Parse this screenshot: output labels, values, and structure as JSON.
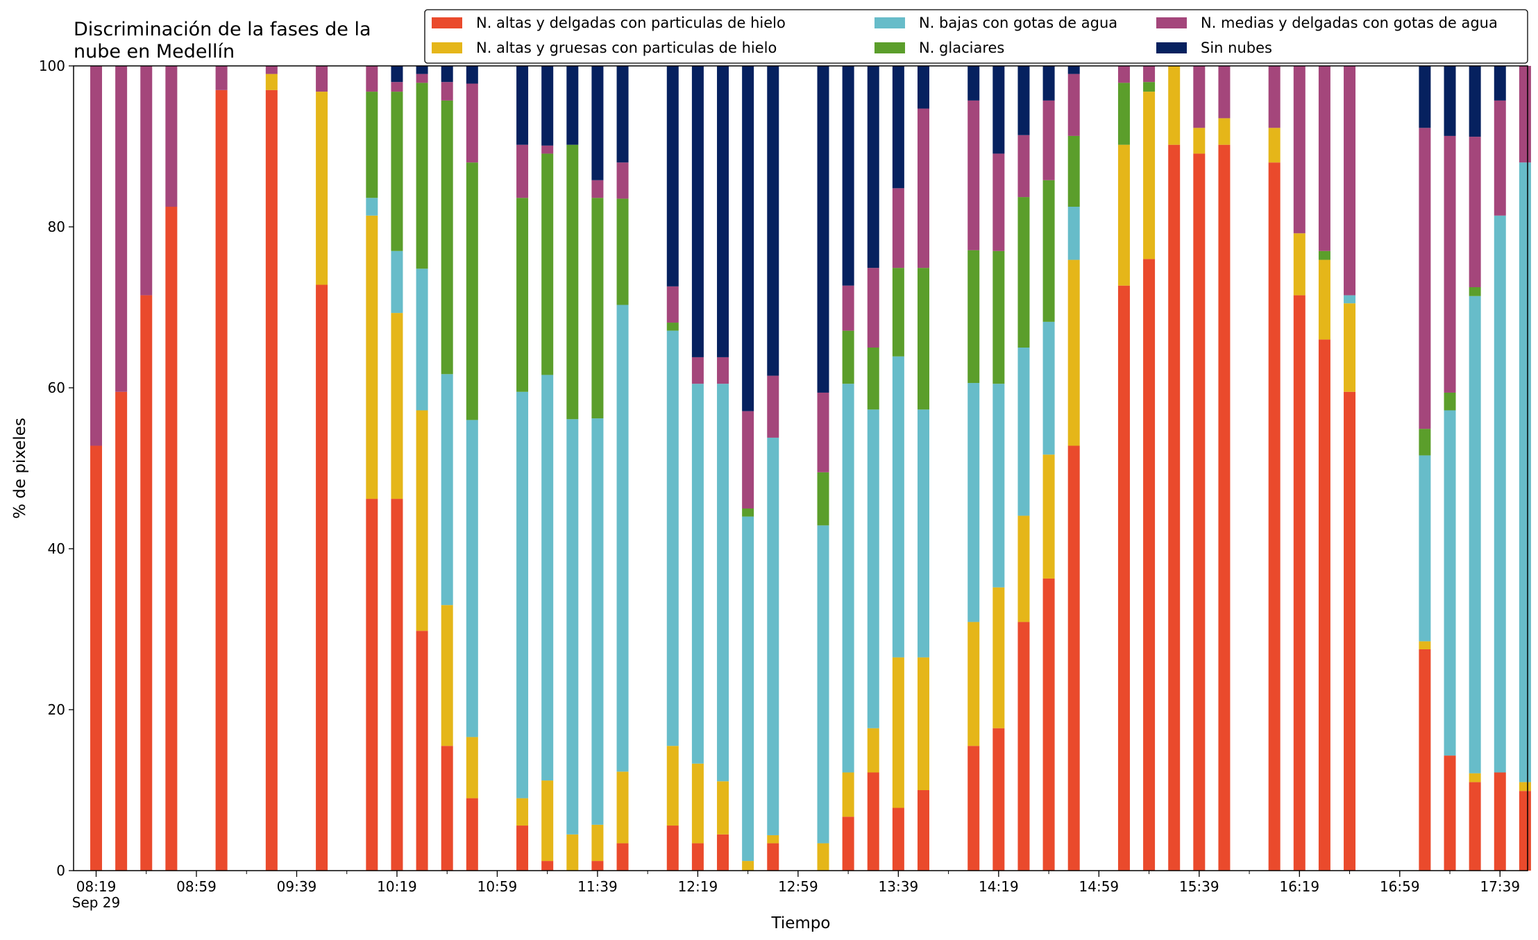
{
  "chart_data": {
    "type": "bar",
    "stacked": true,
    "title_lines": [
      "Discriminación de la fases de la",
      "nube en Medellín"
    ],
    "xlabel": "Tiempo",
    "ylabel": "% de pixeles",
    "ylim": [
      0,
      100
    ],
    "y_ticks": [
      "0",
      "20",
      "40",
      "60",
      "80",
      "100"
    ],
    "x_unit_minutes": 10,
    "x_range_minutes": [
      490,
      1070
    ],
    "x_tick_labels": [
      {
        "t": 499,
        "label": "08:19",
        "sub": "Sep 29"
      },
      {
        "t": 539,
        "label": "08:59"
      },
      {
        "t": 579,
        "label": "09:39"
      },
      {
        "t": 619,
        "label": "10:19"
      },
      {
        "t": 659,
        "label": "10:59"
      },
      {
        "t": 699,
        "label": "11:39"
      },
      {
        "t": 739,
        "label": "12:19"
      },
      {
        "t": 779,
        "label": "12:59"
      },
      {
        "t": 819,
        "label": "13:39"
      },
      {
        "t": 859,
        "label": "14:19"
      },
      {
        "t": 899,
        "label": "14:59"
      },
      {
        "t": 939,
        "label": "15:39"
      },
      {
        "t": 979,
        "label": "16:19"
      },
      {
        "t": 1019,
        "label": "16:59"
      },
      {
        "t": 1059,
        "label": "17:39"
      }
    ],
    "legend_position": "top",
    "legend": [
      {
        "key": "n_altas_delgadas",
        "label": "N. altas y delgadas con particulas de hielo",
        "color": "#ea4a2c"
      },
      {
        "key": "n_altas_gruesas",
        "label": "N. altas y gruesas con particulas de hielo",
        "color": "#e5b619"
      },
      {
        "key": "n_bajas",
        "label": "N. bajas con gotas de agua",
        "color": "#67bcc9"
      },
      {
        "key": "n_glaciares",
        "label": "N. glaciares",
        "color": "#5b9e2b"
      },
      {
        "key": "n_medias",
        "label": "N. medias y delgadas con gotas de agua",
        "color": "#a4467b"
      },
      {
        "key": "sin_nubes",
        "label": "Sin nubes",
        "color": "#06215f"
      }
    ],
    "series_order": [
      "n_altas_delgadas",
      "n_altas_gruesas",
      "n_bajas",
      "n_glaciares",
      "n_medias",
      "sin_nubes"
    ],
    "bars": [
      {
        "time": "08:19",
        "v": [
          52.8,
          0,
          0,
          0,
          47.2,
          0
        ]
      },
      {
        "time": "08:29",
        "v": [
          59.5,
          0,
          0,
          0,
          40.5,
          0
        ]
      },
      {
        "time": "08:39",
        "v": [
          71.5,
          0,
          0,
          0,
          28.5,
          0
        ]
      },
      {
        "time": "08:49",
        "v": [
          82.5,
          0,
          0,
          0,
          17.5,
          0
        ]
      },
      {
        "time": "09:09",
        "v": [
          97,
          0,
          0,
          0,
          3,
          0
        ]
      },
      {
        "time": "09:29",
        "v": [
          97,
          2,
          0,
          0,
          1,
          0
        ]
      },
      {
        "time": "09:49",
        "v": [
          72.8,
          24,
          0,
          0,
          3.2,
          0
        ]
      },
      {
        "time": "10:09",
        "v": [
          46.2,
          35.2,
          2.2,
          13.2,
          3.2,
          0
        ]
      },
      {
        "time": "10:19",
        "v": [
          46.2,
          23.1,
          7.7,
          19.8,
          1.2,
          2
        ]
      },
      {
        "time": "10:29",
        "v": [
          29.8,
          27.4,
          17.6,
          23.1,
          1.1,
          1
        ]
      },
      {
        "time": "10:39",
        "v": [
          15.5,
          17.5,
          28.7,
          34,
          2.3,
          2
        ]
      },
      {
        "time": "10:49",
        "v": [
          9,
          7.6,
          39.4,
          32,
          9.8,
          2.2
        ]
      },
      {
        "time": "11:09",
        "v": [
          5.6,
          3.4,
          50.5,
          24.1,
          6.6,
          9.8
        ]
      },
      {
        "time": "11:19",
        "v": [
          1.2,
          10,
          50.4,
          27.5,
          1,
          9.9
        ]
      },
      {
        "time": "11:29",
        "v": [
          0,
          4.5,
          51.6,
          34.1,
          0,
          9.8
        ]
      },
      {
        "time": "11:39",
        "v": [
          1.2,
          4.5,
          50.5,
          27.4,
          2.2,
          14.2
        ]
      },
      {
        "time": "11:49",
        "v": [
          3.4,
          8.9,
          58,
          13.2,
          4.5,
          12
        ]
      },
      {
        "time": "12:09",
        "v": [
          5.6,
          9.9,
          51.6,
          1,
          4.5,
          27.4
        ]
      },
      {
        "time": "12:19",
        "v": [
          3.4,
          9.9,
          47.2,
          0,
          3.3,
          36.2
        ]
      },
      {
        "time": "12:29",
        "v": [
          4.5,
          6.6,
          49.4,
          0,
          3.3,
          36.2
        ]
      },
      {
        "time": "12:39",
        "v": [
          0,
          1.2,
          42.8,
          1,
          12.1,
          42.9
        ]
      },
      {
        "time": "12:49",
        "v": [
          3.4,
          1,
          49.4,
          0,
          7.7,
          38.5
        ]
      },
      {
        "time": "13:09",
        "v": [
          0,
          3.4,
          39.5,
          6.6,
          9.9,
          40.6
        ]
      },
      {
        "time": "13:19",
        "v": [
          6.7,
          5.5,
          48.3,
          6.6,
          5.6,
          27.3
        ]
      },
      {
        "time": "13:29",
        "v": [
          12.2,
          5.5,
          39.6,
          7.7,
          9.9,
          25.1
        ]
      },
      {
        "time": "13:39",
        "v": [
          7.8,
          18.7,
          37.4,
          11,
          9.9,
          15.2
        ]
      },
      {
        "time": "13:49",
        "v": [
          10,
          16.5,
          30.8,
          17.6,
          19.8,
          5.3
        ]
      },
      {
        "time": "14:09",
        "v": [
          15.5,
          15.4,
          29.7,
          16.5,
          18.6,
          4.3
        ]
      },
      {
        "time": "14:19",
        "v": [
          17.7,
          17.5,
          25.3,
          16.5,
          12.1,
          10.9
        ]
      },
      {
        "time": "14:29",
        "v": [
          30.9,
          13.2,
          20.9,
          18.7,
          7.7,
          8.6
        ]
      },
      {
        "time": "14:39",
        "v": [
          36.3,
          15.4,
          16.5,
          17.6,
          9.9,
          4.3
        ]
      },
      {
        "time": "14:49",
        "v": [
          52.8,
          23.1,
          6.6,
          8.8,
          7.7,
          1
        ]
      },
      {
        "time": "15:09",
        "v": [
          72.7,
          17.5,
          0,
          7.7,
          2.1,
          0
        ]
      },
      {
        "time": "15:19",
        "v": [
          76,
          20.8,
          0,
          1.2,
          2,
          0
        ]
      },
      {
        "time": "15:29",
        "v": [
          90.2,
          9.8,
          0,
          0,
          0,
          0
        ]
      },
      {
        "time": "15:39",
        "v": [
          89.1,
          3.2,
          0,
          0,
          7.7,
          0
        ]
      },
      {
        "time": "15:49",
        "v": [
          90.2,
          3.3,
          0,
          0,
          6.5,
          0
        ]
      },
      {
        "time": "16:09",
        "v": [
          88,
          4.3,
          0,
          0,
          7.7,
          0
        ]
      },
      {
        "time": "16:19",
        "v": [
          71.5,
          7.7,
          0,
          0,
          20.8,
          0
        ]
      },
      {
        "time": "16:29",
        "v": [
          66,
          9.9,
          0,
          1.1,
          23,
          0
        ]
      },
      {
        "time": "16:39",
        "v": [
          59.5,
          11,
          1,
          0,
          28.5,
          0
        ]
      },
      {
        "time": "17:09",
        "v": [
          27.5,
          1,
          23.1,
          3.3,
          37.4,
          7.7
        ]
      },
      {
        "time": "17:19",
        "v": [
          14.3,
          0,
          42.9,
          2.2,
          31.9,
          8.7
        ]
      },
      {
        "time": "17:29",
        "v": [
          11,
          1.1,
          59.3,
          1.1,
          18.7,
          8.8
        ]
      },
      {
        "time": "17:39",
        "v": [
          12.2,
          0,
          69.2,
          0,
          14.3,
          4.3
        ]
      },
      {
        "time": "17:49",
        "v": [
          9.9,
          1.1,
          77,
          0,
          12,
          0
        ]
      }
    ]
  }
}
